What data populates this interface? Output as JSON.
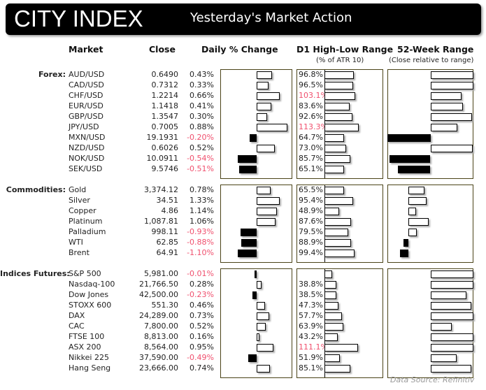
{
  "header": {
    "logo": "CITY INDEX",
    "title": "Yesterday's Market Action"
  },
  "columns": {
    "market": "Market",
    "close": "Close",
    "daily": "Daily % Change",
    "d1": "D1 High-Low Range",
    "d1_sub": "(% of ATR 10)",
    "wk52": "52-Week Range",
    "wk52_sub": "(Close relative to range)"
  },
  "colors": {
    "negative": "#f0506e",
    "panel_border": "#4a4318",
    "bar_negative": "#000000",
    "bar_positive": "#ffffff",
    "header_bg": "#000000"
  },
  "sections": [
    {
      "label": "Forex:",
      "daily_axis_max": 1.04,
      "wk52_axis": [
        -1,
        1
      ],
      "rows": [
        {
          "market": "AUD/USD",
          "close": "0.6490",
          "pct": 0.43,
          "pct_text": "0.43%",
          "d1": 96.8,
          "d1_text": "96.8%",
          "wk52": 1.0
        },
        {
          "market": "CAD/USD",
          "close": "0.7312",
          "pct": 0.33,
          "pct_text": "0.33%",
          "d1": 96.5,
          "d1_text": "96.5%",
          "wk52": 1.0
        },
        {
          "market": "CHF/USD",
          "close": "1.2214",
          "pct": 0.66,
          "pct_text": "0.66%",
          "d1": 103.1,
          "d1_text": "103.1%",
          "wk52": 0.73
        },
        {
          "market": "EUR/USD",
          "close": "1.1418",
          "pct": 0.41,
          "pct_text": "0.41%",
          "d1": 83.6,
          "d1_text": "83.6%",
          "wk52": 0.75
        },
        {
          "market": "GBP/USD",
          "close": "1.3547",
          "pct": 0.3,
          "pct_text": "0.30%",
          "d1": 92.6,
          "d1_text": "92.6%",
          "wk52": 0.96
        },
        {
          "market": "JPY/USD",
          "close": "0.7005",
          "pct": 0.88,
          "pct_text": "0.88%",
          "d1": 113.3,
          "d1_text": "113.3%",
          "wk52": 0.62
        },
        {
          "market": "MXN/USD",
          "close": "19.1931",
          "pct": -0.2,
          "pct_text": "-0.20%",
          "d1": 64.7,
          "d1_text": "64.7%",
          "wk52": -1.0
        },
        {
          "market": "NZD/USD",
          "close": "0.6026",
          "pct": 0.52,
          "pct_text": "0.52%",
          "d1": 73.0,
          "d1_text": "73.0%",
          "wk52": 0.98
        },
        {
          "market": "NOK/USD",
          "close": "10.0911",
          "pct": -0.54,
          "pct_text": "-0.54%",
          "d1": 85.7,
          "d1_text": "85.7%",
          "wk52": -0.95
        },
        {
          "market": "SEK/USD",
          "close": "9.5746",
          "pct": -0.51,
          "pct_text": "-0.51%",
          "d1": 65.1,
          "d1_text": "65.1%",
          "wk52": -0.76
        }
      ]
    },
    {
      "label": "Commodities:",
      "daily_axis_max": 2.08,
      "wk52_axis": [
        -0.48,
        1.5
      ],
      "rows": [
        {
          "market": "Gold",
          "close": "3,374.12",
          "pct": 0.78,
          "pct_text": "0.78%",
          "d1": 65.5,
          "d1_text": "65.5%",
          "wk52": 0.37
        },
        {
          "market": "Silver",
          "close": "34.51",
          "pct": 1.33,
          "pct_text": "1.33%",
          "d1": 95.4,
          "d1_text": "95.4%",
          "wk52": 0.42
        },
        {
          "market": "Copper",
          "close": "4.86",
          "pct": 1.14,
          "pct_text": "1.14%",
          "d1": 48.9,
          "d1_text": "48.9%",
          "wk52": 0.18
        },
        {
          "market": "Platinum",
          "close": "1,087.81",
          "pct": 1.06,
          "pct_text": "1.06%",
          "d1": 87.6,
          "d1_text": "87.6%",
          "wk52": 0.47
        },
        {
          "market": "Palladium",
          "close": "998.11",
          "pct": -0.93,
          "pct_text": "-0.93%",
          "d1": 79.5,
          "d1_text": "79.5%",
          "wk52": 0.19
        },
        {
          "market": "WTI",
          "close": "62.85",
          "pct": -0.88,
          "pct_text": "-0.88%",
          "d1": 88.9,
          "d1_text": "88.9%",
          "wk52": -0.11
        },
        {
          "market": "Brent",
          "close": "64.91",
          "pct": -1.1,
          "pct_text": "-1.10%",
          "d1": 99.4,
          "d1_text": "99.4%",
          "wk52": -0.19
        }
      ]
    },
    {
      "label": "Indices Futures:",
      "daily_axis_max": 2.08,
      "wk52_axis": [
        -1,
        1
      ],
      "rows": [
        {
          "market": "S&P 500",
          "close": "5,981.00",
          "pct": -0.01,
          "pct_text": "-0.01%",
          "d1": 26,
          "d1_text": "",
          "wk52": 1.0
        },
        {
          "market": "Nasdaq-100",
          "close": "21,766.50",
          "pct": 0.28,
          "pct_text": "0.28%",
          "d1": 38.8,
          "d1_text": "38.8%",
          "wk52": 1.0
        },
        {
          "market": "Dow Jones",
          "close": "42,500.00",
          "pct": -0.23,
          "pct_text": "-0.23%",
          "d1": 38.5,
          "d1_text": "38.5%",
          "wk52": 0.84
        },
        {
          "market": "STOXX 600",
          "close": "551.30",
          "pct": 0.46,
          "pct_text": "0.46%",
          "d1": 47.3,
          "d1_text": "47.3%",
          "wk52": 0.95
        },
        {
          "market": "DAX",
          "close": "24,289.00",
          "pct": 0.73,
          "pct_text": "0.73%",
          "d1": 57.7,
          "d1_text": "57.7%",
          "wk52": 1.0
        },
        {
          "market": "CAC",
          "close": "7,800.00",
          "pct": 0.52,
          "pct_text": "0.52%",
          "d1": 63.9,
          "d1_text": "63.9%",
          "wk52": 0.49
        },
        {
          "market": "FTSE 100",
          "close": "8,813.00",
          "pct": 0.16,
          "pct_text": "0.16%",
          "d1": 43.2,
          "d1_text": "43.2%",
          "wk52": 1.0
        },
        {
          "market": "ASX 200",
          "close": "8,564.00",
          "pct": 0.95,
          "pct_text": "0.95%",
          "d1": 111.1,
          "d1_text": "111.1%",
          "wk52": 1.0
        },
        {
          "market": "Nikkei 225",
          "close": "37,590.00",
          "pct": -0.49,
          "pct_text": "-0.49%",
          "d1": 51.9,
          "d1_text": "51.9%",
          "wk52": 0.61
        },
        {
          "market": "Hang Seng",
          "close": "23,666.00",
          "pct": 0.74,
          "pct_text": "0.74%",
          "d1": 85.1,
          "d1_text": "85.1%",
          "wk52": 0.95
        }
      ]
    }
  ],
  "footer": {
    "source": "Data Source: Refinitiv"
  }
}
